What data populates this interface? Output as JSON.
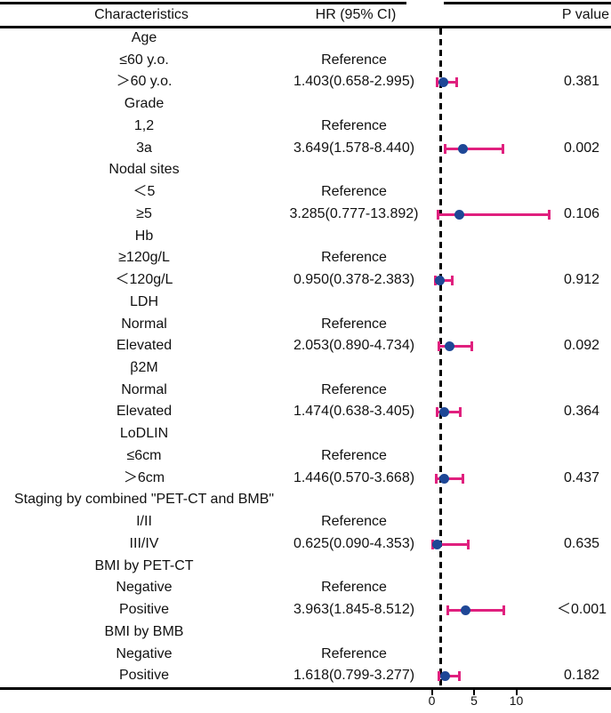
{
  "header": {
    "characteristics": "Characteristics",
    "hr_ci": "HR (95% CI)",
    "p_value": "P value"
  },
  "colors": {
    "ci_bar": "#e0207e",
    "point_marker": "#1e4796",
    "rule": "#000000"
  },
  "chart_data": {
    "type": "scatter",
    "subtype": "forest-plot",
    "columns": [
      "Characteristics",
      "HR (95% CI)",
      "P value"
    ],
    "x_ticks": [
      0,
      5,
      10
    ],
    "reference_line_x": 1,
    "legend": "none",
    "rows": [
      {
        "label": "Age",
        "is_group": true
      },
      {
        "label": "≤60 y.o.",
        "hr_text": "Reference"
      },
      {
        "label": "＞60 y.o.",
        "hr_text": "1.403(0.658-2.995)",
        "p": "0.381",
        "est": 1.403,
        "lo": 0.658,
        "hi": 2.995
      },
      {
        "label": "Grade",
        "is_group": true
      },
      {
        "label": "1,2",
        "hr_text": "Reference"
      },
      {
        "label": "3a",
        "hr_text": "3.649(1.578-8.440)",
        "p": "0.002",
        "est": 3.649,
        "lo": 1.578,
        "hi": 8.44
      },
      {
        "label": "Nodal sites",
        "is_group": true
      },
      {
        "label": "＜5",
        "hr_text": "Reference"
      },
      {
        "label": "≥5",
        "hr_text": "3.285(0.777-13.892)",
        "p": "0.106",
        "est": 3.285,
        "lo": 0.777,
        "hi": 13.892
      },
      {
        "label": "Hb",
        "is_group": true
      },
      {
        "label": "≥120g/L",
        "hr_text": "Reference"
      },
      {
        "label": "＜120g/L",
        "hr_text": "0.950(0.378-2.383)",
        "p": "0.912",
        "est": 0.95,
        "lo": 0.378,
        "hi": 2.383
      },
      {
        "label": "LDH",
        "is_group": true
      },
      {
        "label": "Normal",
        "hr_text": "Reference"
      },
      {
        "label": "Elevated",
        "hr_text": "2.053(0.890-4.734)",
        "p": "0.092",
        "est": 2.053,
        "lo": 0.89,
        "hi": 4.734
      },
      {
        "label": "β2M",
        "is_group": true
      },
      {
        "label": "Normal",
        "hr_text": "Reference"
      },
      {
        "label": "Elevated",
        "hr_text": "1.474(0.638-3.405)",
        "p": "0.364",
        "est": 1.474,
        "lo": 0.638,
        "hi": 3.405
      },
      {
        "label": "LoDLIN",
        "is_group": true
      },
      {
        "label": "≤6cm",
        "hr_text": "Reference"
      },
      {
        "label": "＞6cm",
        "hr_text": "1.446(0.570-3.668)",
        "p": "0.437",
        "est": 1.446,
        "lo": 0.57,
        "hi": 3.668
      },
      {
        "label": "Staging by combined \"PET-CT and BMB\"",
        "is_group": true
      },
      {
        "label": "I/II",
        "hr_text": "Reference"
      },
      {
        "label": "III/IV",
        "hr_text": "0.625(0.090-4.353)",
        "p": "0.635",
        "est": 0.625,
        "lo": 0.09,
        "hi": 4.353
      },
      {
        "label": "BMI by PET-CT",
        "is_group": true
      },
      {
        "label": "Negative",
        "hr_text": "Reference"
      },
      {
        "label": "Positive",
        "hr_text": "3.963(1.845-8.512)",
        "p": "＜0.001",
        "est": 3.963,
        "lo": 1.845,
        "hi": 8.512
      },
      {
        "label": "BMI by BMB",
        "is_group": true
      },
      {
        "label": "Negative",
        "hr_text": "Reference"
      },
      {
        "label": "Positive",
        "hr_text": "1.618(0.799-3.277)",
        "p": "0.182",
        "est": 1.618,
        "lo": 0.799,
        "hi": 3.277
      }
    ]
  }
}
